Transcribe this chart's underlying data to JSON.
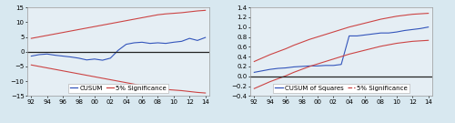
{
  "years": [
    1992,
    1993,
    1994,
    1995,
    1996,
    1997,
    1998,
    1999,
    2000,
    2001,
    2002,
    2003,
    2004,
    2005,
    2006,
    2007,
    2008,
    2009,
    2010,
    2011,
    2012,
    2013,
    2014
  ],
  "cusum": [
    -1.5,
    -1.0,
    -0.8,
    -1.2,
    -1.5,
    -1.8,
    -2.2,
    -2.8,
    -2.5,
    -2.9,
    -2.2,
    0.5,
    2.5,
    3.0,
    3.2,
    2.8,
    3.0,
    2.8,
    3.2,
    3.5,
    4.5,
    3.8,
    4.8
  ],
  "cusum_sig_upper": [
    4.5,
    5.0,
    5.5,
    6.0,
    6.5,
    7.0,
    7.5,
    8.0,
    8.5,
    9.0,
    9.5,
    10.0,
    10.5,
    11.0,
    11.5,
    12.0,
    12.5,
    12.8,
    13.0,
    13.2,
    13.5,
    13.8,
    14.0
  ],
  "cusum_sig_lower": [
    -4.5,
    -5.0,
    -5.5,
    -6.0,
    -6.5,
    -7.0,
    -7.5,
    -8.0,
    -8.5,
    -9.0,
    -9.5,
    -10.0,
    -10.5,
    -11.0,
    -11.5,
    -12.0,
    -12.5,
    -12.8,
    -13.0,
    -13.2,
    -13.5,
    -13.8,
    -14.0
  ],
  "cusum_ylim": [
    -15,
    15
  ],
  "cusum_yticks": [
    -15,
    -10,
    -5,
    0,
    5,
    10,
    15
  ],
  "cusumsq": [
    0.08,
    0.11,
    0.14,
    0.16,
    0.17,
    0.19,
    0.2,
    0.21,
    0.21,
    0.22,
    0.22,
    0.24,
    0.82,
    0.82,
    0.84,
    0.86,
    0.88,
    0.88,
    0.9,
    0.93,
    0.95,
    0.97,
    1.0
  ],
  "cusumsq_sig_upper": [
    0.3,
    0.37,
    0.44,
    0.5,
    0.56,
    0.63,
    0.69,
    0.75,
    0.8,
    0.85,
    0.9,
    0.95,
    1.0,
    1.04,
    1.08,
    1.12,
    1.16,
    1.19,
    1.22,
    1.24,
    1.26,
    1.27,
    1.28
  ],
  "cusumsq_sig_lower": [
    -0.25,
    -0.18,
    -0.11,
    -0.05,
    0.01,
    0.08,
    0.14,
    0.2,
    0.25,
    0.3,
    0.35,
    0.4,
    0.45,
    0.49,
    0.53,
    0.57,
    0.61,
    0.64,
    0.67,
    0.69,
    0.71,
    0.72,
    0.73
  ],
  "cusumsq_ylim": [
    -0.4,
    1.4
  ],
  "cusumsq_yticks": [
    -0.4,
    -0.2,
    0.0,
    0.2,
    0.4,
    0.6,
    0.8,
    1.0,
    1.2,
    1.4
  ],
  "xticks": [
    1992,
    1994,
    1996,
    1998,
    2000,
    2002,
    2004,
    2006,
    2008,
    2010,
    2012,
    2014
  ],
  "xticklabels": [
    "92",
    "94",
    "96",
    "98",
    "00",
    "02",
    "04",
    "06",
    "08",
    "10",
    "12",
    "14"
  ],
  "bg_color": "#d8e8f0",
  "plot_bg_color": "#e5eef4",
  "cusum_line_color": "#3355bb",
  "sig_line_color": "#cc4444",
  "zero_line_color": "#222222",
  "legend_fontsize": 5.0,
  "tick_fontsize": 5.0
}
